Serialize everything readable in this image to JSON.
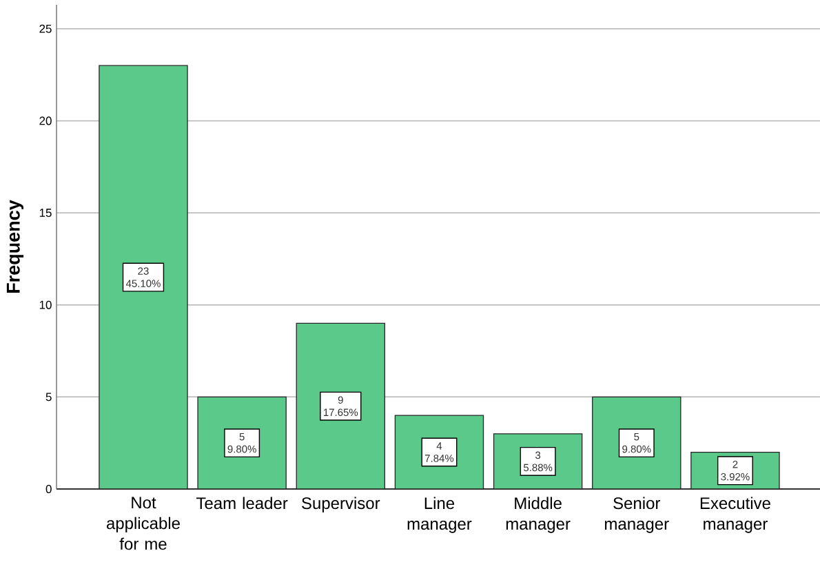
{
  "chart_data": {
    "type": "bar",
    "ylabel": "Frequency",
    "categories": [
      "Not applicable for me",
      "Team leader",
      "Supervisor",
      "Line manager",
      "Middle manager",
      "Senior manager",
      "Executive manager"
    ],
    "values": [
      23,
      5,
      9,
      4,
      3,
      5,
      2
    ],
    "color": "#5bc98a",
    "value_labels": [
      "23 45.10%",
      "5 9.80%",
      "9 17.65%",
      "4 7.84%",
      "3 5.88%",
      "5 9.80%",
      "2 3.92%"
    ],
    "ylim": [
      0,
      26.3
    ],
    "yticks": [
      0,
      5,
      10,
      15,
      20,
      25
    ],
    "grid": "y"
  }
}
